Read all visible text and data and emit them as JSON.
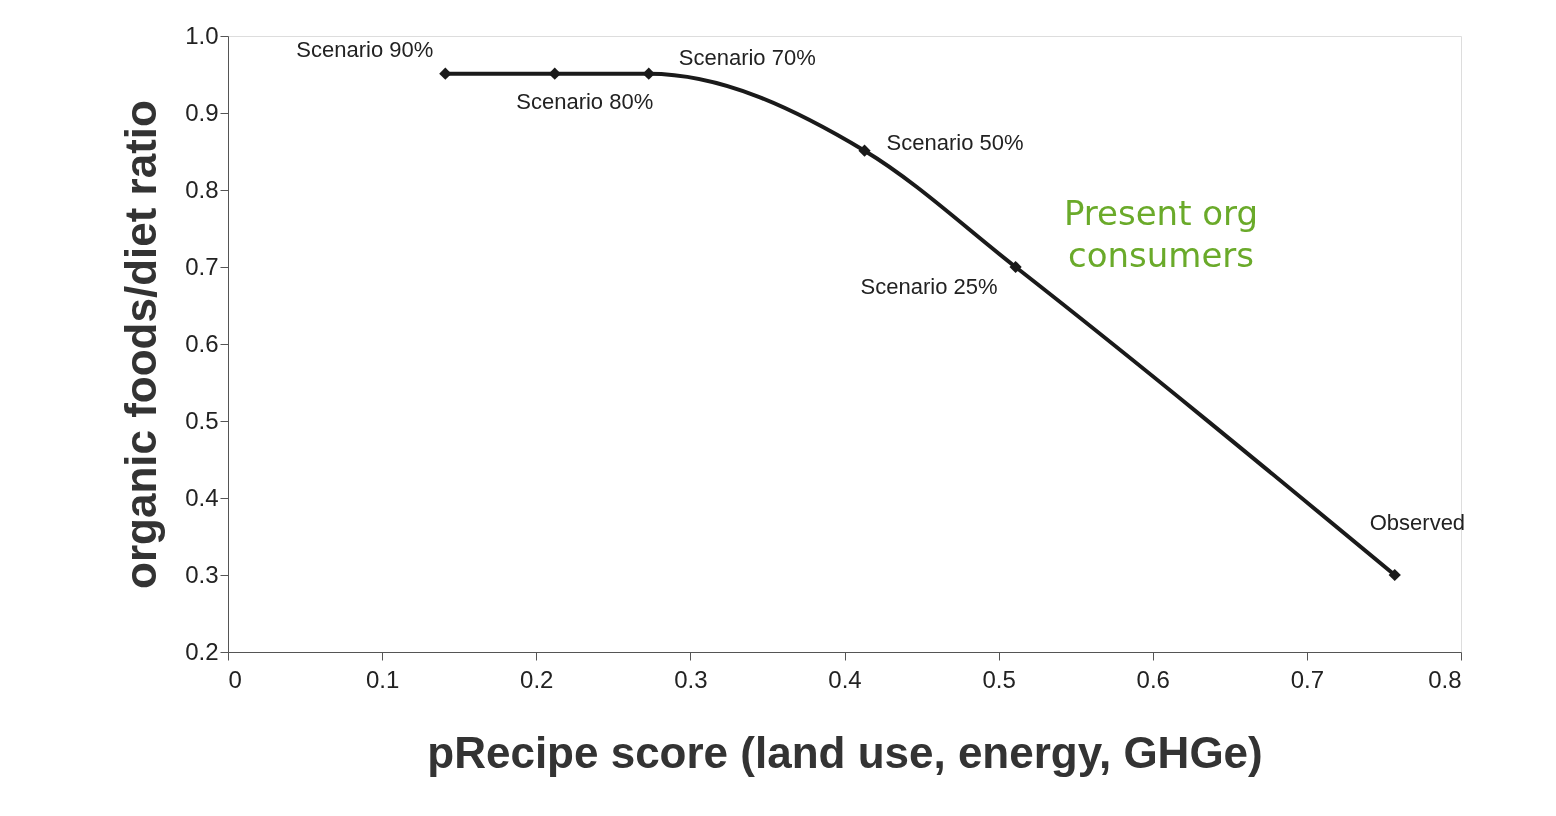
{
  "chart_data": {
    "type": "line",
    "xlabel": "pRecipe score (land use, energy, GHGe)",
    "ylabel": "organic foods/diet ratio",
    "x": [
      0.141,
      0.212,
      0.273,
      0.413,
      0.511,
      0.757
    ],
    "series": [
      {
        "color": "#1a1a1a",
        "values": [
          0.951,
          0.951,
          0.951,
          0.851,
          0.7,
          0.3
        ]
      }
    ],
    "xlim": [
      0,
      0.8
    ],
    "xticks": [
      0,
      0.1,
      0.2,
      0.3,
      0.4,
      0.5,
      0.6,
      0.7,
      0.8
    ],
    "ylim": [
      0.2,
      1.0
    ],
    "yticks": [
      0.2,
      0.3,
      0.4,
      0.5,
      0.6,
      0.7,
      0.8,
      0.9,
      {
        "value": 1.0,
        "label": "1.0"
      }
    ],
    "marker": "diamond",
    "line_style": "solid",
    "grid": false,
    "annotations": [
      {
        "text": "Scenario 90%",
        "x": 0.141,
        "y": 0.951
      },
      {
        "text": "Scenario 80%",
        "x": 0.212,
        "y": 0.951
      },
      {
        "text": "Scenario 70%",
        "x": 0.273,
        "y": 0.951
      },
      {
        "text": "Scenario 50%",
        "x": 0.413,
        "y": 0.851
      },
      {
        "text": "Scenario 25%",
        "x": 0.511,
        "y": 0.7
      },
      {
        "text": "Observed",
        "x": 0.757,
        "y": 0.3
      },
      "Present org consumers"
    ]
  }
}
